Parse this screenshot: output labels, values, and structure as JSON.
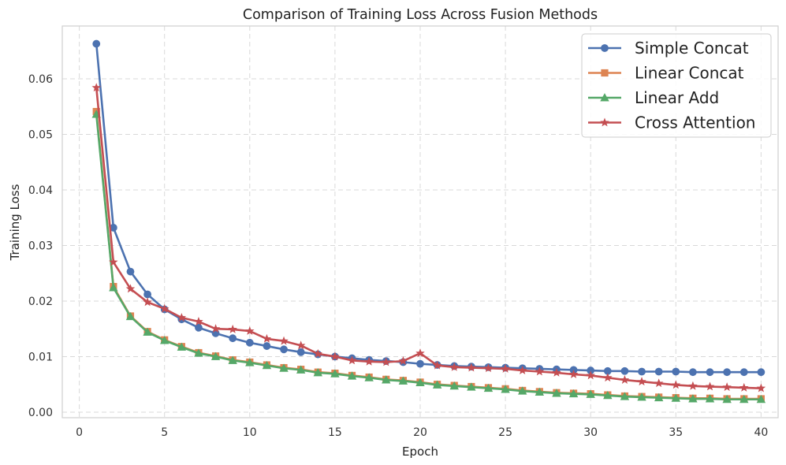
{
  "chart_data": {
    "type": "line",
    "title": "Comparison of Training Loss Across Fusion Methods",
    "xlabel": "Epoch",
    "ylabel": "Training Loss",
    "xlim": [
      -1,
      41
    ],
    "ylim": [
      -0.001,
      0.0695
    ],
    "xticks": [
      0,
      5,
      10,
      15,
      20,
      25,
      30,
      35,
      40
    ],
    "xtick_labels": [
      "0",
      "5",
      "10",
      "15",
      "20",
      "25",
      "30",
      "35",
      "40"
    ],
    "yticks": [
      0,
      0.01,
      0.02,
      0.03,
      0.04,
      0.05,
      0.06
    ],
    "ytick_labels": [
      "0.00",
      "0.01",
      "0.02",
      "0.03",
      "0.04",
      "0.05",
      "0.06"
    ],
    "grid": true,
    "legend_position": "top-right",
    "x": [
      1,
      2,
      3,
      4,
      5,
      6,
      7,
      8,
      9,
      10,
      11,
      12,
      13,
      14,
      15,
      16,
      17,
      18,
      19,
      20,
      21,
      22,
      23,
      24,
      25,
      26,
      27,
      28,
      29,
      30,
      31,
      32,
      33,
      34,
      35,
      36,
      37,
      38,
      39,
      40
    ],
    "series": [
      {
        "name": "Simple Concat",
        "color": "#4c72b0",
        "marker": "circle",
        "values": [
          0.0663,
          0.0332,
          0.0253,
          0.0212,
          0.0185,
          0.0167,
          0.0152,
          0.0142,
          0.0133,
          0.0125,
          0.0119,
          0.0113,
          0.0108,
          0.0104,
          0.01,
          0.0097,
          0.0094,
          0.0092,
          0.009,
          0.0087,
          0.0085,
          0.0083,
          0.0082,
          0.0081,
          0.008,
          0.0079,
          0.0078,
          0.0077,
          0.0076,
          0.0075,
          0.0074,
          0.0074,
          0.0073,
          0.0073,
          0.0073,
          0.0072,
          0.0072,
          0.0072,
          0.0072,
          0.0072
        ]
      },
      {
        "name": "Linear Concat",
        "color": "#dd8452",
        "marker": "square",
        "values": [
          0.0541,
          0.0226,
          0.0173,
          0.0145,
          0.013,
          0.0118,
          0.0107,
          0.0101,
          0.0094,
          0.009,
          0.0085,
          0.008,
          0.0077,
          0.0072,
          0.007,
          0.0066,
          0.0063,
          0.0059,
          0.0057,
          0.0054,
          0.005,
          0.0048,
          0.0046,
          0.0044,
          0.0042,
          0.0039,
          0.0037,
          0.0035,
          0.0034,
          0.0033,
          0.0031,
          0.0029,
          0.0028,
          0.0027,
          0.0026,
          0.0025,
          0.0025,
          0.0024,
          0.0024,
          0.0024
        ]
      },
      {
        "name": "Linear Add",
        "color": "#55a868",
        "marker": "triangle",
        "values": [
          0.0536,
          0.0224,
          0.0172,
          0.0144,
          0.0129,
          0.0117,
          0.0106,
          0.01,
          0.0093,
          0.0089,
          0.0084,
          0.0079,
          0.0076,
          0.0071,
          0.0069,
          0.0065,
          0.0062,
          0.0058,
          0.0056,
          0.0053,
          0.0049,
          0.0047,
          0.0045,
          0.0043,
          0.0041,
          0.0038,
          0.0036,
          0.0034,
          0.0033,
          0.0032,
          0.003,
          0.0028,
          0.0027,
          0.0026,
          0.0025,
          0.0024,
          0.0024,
          0.0023,
          0.0023,
          0.0023
        ]
      },
      {
        "name": "Cross Attention",
        "color": "#c44e52",
        "marker": "star",
        "values": [
          0.0584,
          0.027,
          0.0222,
          0.0198,
          0.0186,
          0.017,
          0.0163,
          0.015,
          0.0149,
          0.0146,
          0.0132,
          0.0128,
          0.012,
          0.0105,
          0.01,
          0.0093,
          0.0091,
          0.009,
          0.0092,
          0.0106,
          0.0084,
          0.0081,
          0.008,
          0.0079,
          0.0078,
          0.0075,
          0.0073,
          0.0071,
          0.0068,
          0.0066,
          0.0062,
          0.0058,
          0.0055,
          0.0052,
          0.0049,
          0.0047,
          0.0046,
          0.0045,
          0.0044,
          0.0043
        ]
      }
    ]
  }
}
